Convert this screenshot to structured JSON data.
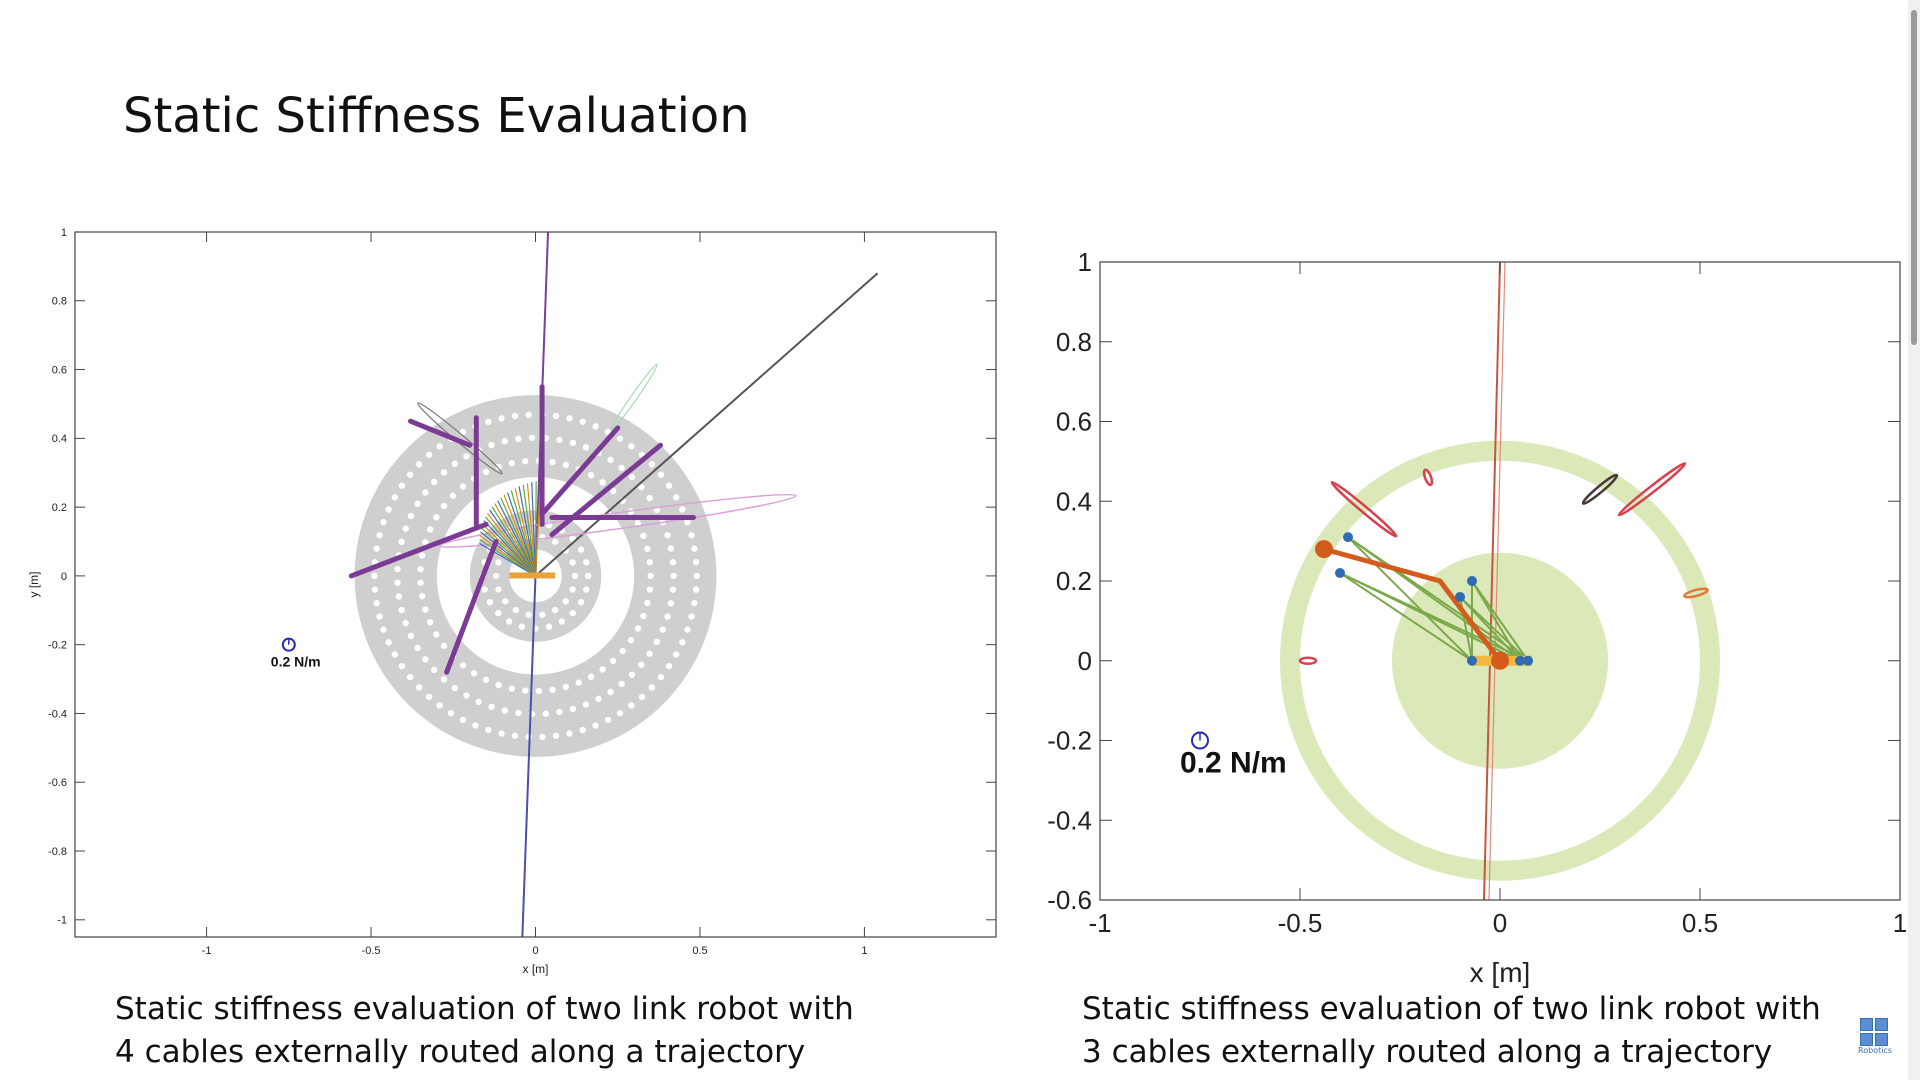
{
  "slide": {
    "title": "Static Stiffness Evaluation"
  },
  "captions": {
    "left": "Static stiffness evaluation of two link robot with 4 cables externally routed along a trajectory",
    "right": "Static stiffness evaluation of two link robot with 3 cables externally routed along a trajectory"
  },
  "logo": {
    "label": "Robotics"
  },
  "chart_data": [
    {
      "type": "scatter",
      "xlabel": "x [m]",
      "ylabel": "y [m]",
      "xlim": [
        -1.4,
        1.4
      ],
      "ylim": [
        -1.05,
        1.0
      ],
      "xticks": [
        -1,
        -0.5,
        0,
        0.5,
        1
      ],
      "yticks": [
        1,
        0.8,
        0.6,
        0.4,
        0.2,
        0,
        -0.2,
        -0.4,
        -0.6,
        -0.8,
        -1
      ],
      "scale_label": "0.2 N/m",
      "scale_marker": [
        -0.75,
        -0.2
      ],
      "workspace_rings": [
        {
          "inner": 0.08,
          "outer": 0.2
        },
        {
          "inner": 0.3,
          "outer": 0.55
        }
      ],
      "stiffness_axes": [
        {
          "x1": 0.0,
          "y1": 0.0,
          "x2": 0.04,
          "y2": 1.05,
          "color": "#7a3f9a"
        },
        {
          "x1": 0.0,
          "y1": 0.0,
          "x2": -0.04,
          "y2": -1.05,
          "color": "#4a4fb0"
        },
        {
          "x1": 0.0,
          "y1": 0.0,
          "x2": 1.04,
          "y2": 0.88,
          "color": "#555555"
        }
      ],
      "force_rays": [
        {
          "x1": -0.18,
          "y1": 0.15,
          "x2": -0.18,
          "y2": 0.46
        },
        {
          "x1": 0.02,
          "y1": 0.15,
          "x2": 0.02,
          "y2": 0.55
        },
        {
          "x1": 0.02,
          "y1": 0.18,
          "x2": 0.25,
          "y2": 0.43
        },
        {
          "x1": 0.05,
          "y1": 0.12,
          "x2": 0.38,
          "y2": 0.38
        },
        {
          "x1": 0.05,
          "y1": 0.17,
          "x2": 0.48,
          "y2": 0.17
        },
        {
          "x1": -0.15,
          "y1": 0.15,
          "x2": -0.56,
          "y2": 0.0
        },
        {
          "x1": -0.12,
          "y1": 0.1,
          "x2": -0.27,
          "y2": -0.28
        },
        {
          "x1": -0.2,
          "y1": 0.38,
          "x2": -0.38,
          "y2": 0.45
        }
      ]
    },
    {
      "type": "scatter",
      "xlabel": "x [m]",
      "ylabel": "",
      "xlim": [
        -1,
        1
      ],
      "ylim": [
        -0.6,
        1.0
      ],
      "xticks": [
        -1,
        -0.5,
        0,
        0.5,
        1
      ],
      "yticks": [
        1,
        0.8,
        0.6,
        0.4,
        0.2,
        0,
        -0.2,
        -0.4,
        -0.6
      ],
      "scale_label": "0.2 N/m",
      "scale_marker": [
        -0.75,
        -0.2
      ],
      "workspace_disk": {
        "center": [
          0,
          0
        ],
        "radius": 0.27
      },
      "workspace_ring": {
        "center": [
          0,
          0
        ],
        "inner": 0.5,
        "outer": 0.55
      },
      "links": [
        {
          "x1": 0.0,
          "y1": 0.0,
          "x2": -0.15,
          "y2": 0.2
        },
        {
          "x1": -0.15,
          "y1": 0.2,
          "x2": -0.44,
          "y2": 0.28
        }
      ],
      "joints": [
        [
          0.0,
          0.0
        ],
        [
          -0.44,
          0.28
        ]
      ],
      "stiffness_axes": [
        {
          "x1": 0.0,
          "y1": 1.0,
          "x2": -0.04,
          "y2": -0.6,
          "color": "#c8553d"
        }
      ]
    }
  ]
}
